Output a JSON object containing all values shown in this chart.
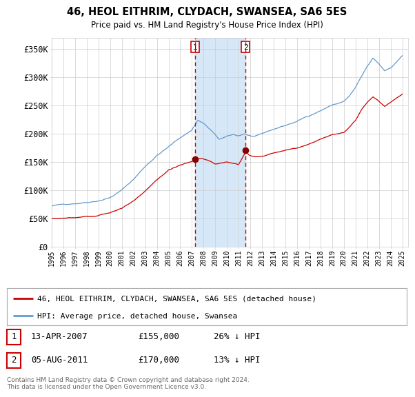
{
  "title": "46, HEOL EITHRIM, CLYDACH, SWANSEA, SA6 5ES",
  "subtitle": "Price paid vs. HM Land Registry's House Price Index (HPI)",
  "ylim": [
    0,
    370000
  ],
  "yticks": [
    0,
    50000,
    100000,
    150000,
    200000,
    250000,
    300000,
    350000
  ],
  "ytick_labels": [
    "£0",
    "£50K",
    "£100K",
    "£150K",
    "£200K",
    "£250K",
    "£300K",
    "£350K"
  ],
  "sale1_date": 2007.28,
  "sale1_price": 155000,
  "sale2_date": 2011.59,
  "sale2_price": 170000,
  "shade_color": "#d6e8f7",
  "vline_color": "#cc0000",
  "hpi_color": "#6699cc",
  "price_color": "#cc0000",
  "dot_color": "#880000",
  "legend_entries": [
    "46, HEOL EITHRIM, CLYDACH, SWANSEA, SA6 5ES (detached house)",
    "HPI: Average price, detached house, Swansea"
  ],
  "footer_text": "Contains HM Land Registry data © Crown copyright and database right 2024.\nThis data is licensed under the Open Government Licence v3.0.",
  "table_rows": [
    [
      "1",
      "13-APR-2007",
      "£155,000",
      "26% ↓ HPI"
    ],
    [
      "2",
      "05-AUG-2011",
      "£170,000",
      "13% ↓ HPI"
    ]
  ],
  "background_color": "#ffffff",
  "grid_color": "#cccccc"
}
